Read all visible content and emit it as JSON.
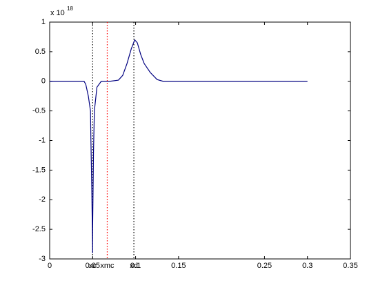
{
  "chart_data": {
    "type": "line",
    "y_exponent_label": "x 10",
    "y_exponent": "18",
    "x": [
      0,
      0.04,
      0.042,
      0.045,
      0.0475,
      0.048,
      0.049,
      0.05,
      0.05,
      0.051,
      0.052,
      0.055,
      0.06,
      0.07,
      0.08,
      0.085,
      0.09,
      0.095,
      0.099,
      0.102,
      0.106,
      0.11,
      0.117,
      0.125,
      0.132,
      0.3
    ],
    "series": [
      {
        "color": "#000080",
        "values": [
          0,
          0,
          -0.05,
          -0.25,
          -0.5,
          -1,
          -1.8,
          -2.9,
          -2.5,
          -1.2,
          -0.5,
          -0.1,
          0,
          0,
          0.02,
          0.1,
          0.3,
          0.55,
          0.7,
          0.65,
          0.45,
          0.3,
          0.15,
          0.03,
          0,
          0
        ]
      }
    ],
    "vlines": [
      {
        "x": 0.05,
        "color": "#000000",
        "label": "xc"
      },
      {
        "x": 0.067,
        "color": "#ff0000",
        "label": "xmc"
      },
      {
        "x": 0.098,
        "color": "#000000",
        "label": "xd"
      }
    ],
    "xlim": [
      0,
      0.35
    ],
    "xticks": [
      0,
      0.05,
      0.1,
      0.15,
      0.25,
      0.3,
      0.35
    ],
    "ylim": [
      -3,
      1
    ],
    "yticks": [
      -3,
      -2.5,
      -2,
      -1.5,
      -1,
      -0.5,
      0,
      0.5,
      1
    ]
  }
}
